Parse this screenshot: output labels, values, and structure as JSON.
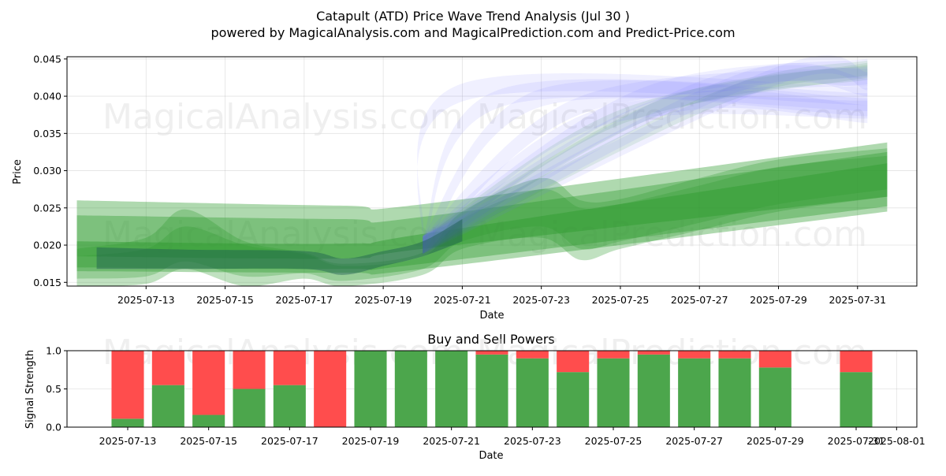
{
  "chart_data": [
    {
      "type": "area",
      "title": "Catapult (ATD) Price Wave Trend Analysis (Jul 30 )",
      "subtitle": "powered by MagicalAnalysis.com and MagicalPrediction.com and Predict-Price.com",
      "xlabel": "Date",
      "ylabel": "Price",
      "xlim": [
        "2025-07-11T00:00",
        "2025-08-01T12:00"
      ],
      "ylim": [
        0.0145,
        0.0453
      ],
      "yticks": [
        "0.015",
        "0.020",
        "0.025",
        "0.030",
        "0.035",
        "0.040",
        "0.045"
      ],
      "ytick_values": [
        0.015,
        0.02,
        0.025,
        0.03,
        0.035,
        0.04,
        0.045
      ],
      "xticks": [
        "2025-07-13",
        "2025-07-15",
        "2025-07-17",
        "2025-07-19",
        "2025-07-21",
        "2025-07-23",
        "2025-07-25",
        "2025-07-27",
        "2025-07-29",
        "2025-07-31"
      ],
      "grid": true,
      "colors": {
        "green": "#2e9a2e",
        "blue": "#6b6bff",
        "dark": "#1a5a50"
      },
      "watermarks": [
        "MagicalAnalysis.com",
        "MagicalPrediction.com",
        "MagicalAnalysis.com",
        "MagicalPrediction.com"
      ],
      "green_bands": [
        {
          "x": [
            "2025-07-11T06:00",
            "2025-07-18T00:00",
            "2025-07-20T00:00",
            "2025-07-31T18:00"
          ],
          "upper": [
            0.026,
            0.0253,
            0.0255,
            0.0338
          ],
          "lower": [
            0.0165,
            0.0163,
            0.0168,
            0.0245
          ],
          "opacity": 0.38
        },
        {
          "x": [
            "2025-07-11T06:00",
            "2025-07-18T00:00",
            "2025-07-20T00:00",
            "2025-07-31T18:00"
          ],
          "upper": [
            0.024,
            0.0235,
            0.0238,
            0.0325
          ],
          "lower": [
            0.017,
            0.0168,
            0.0175,
            0.0252
          ],
          "opacity": 0.38
        },
        {
          "x": [
            "2025-07-11T06:00",
            "2025-07-18T00:00",
            "2025-07-20T00:00",
            "2025-07-31T18:00"
          ],
          "upper": [
            0.0205,
            0.0202,
            0.0215,
            0.031
          ],
          "lower": [
            0.0185,
            0.0182,
            0.0195,
            0.0265
          ],
          "opacity": 0.45
        }
      ],
      "green_waves": [
        {
          "x": [
            "2025-07-11T06:00",
            "2025-07-13T00:00",
            "2025-07-14T00:00",
            "2025-07-15T12:00",
            "2025-07-17T00:00",
            "2025-07-18T00:00",
            "2025-07-20T00:00",
            "2025-07-21T00:00",
            "2025-07-23T00:00",
            "2025-07-24T00:00",
            "2025-07-25T00:00",
            "2025-07-27T00:00",
            "2025-07-29T00:00",
            "2025-07-31T18:00"
          ],
          "upper": [
            0.0195,
            0.021,
            0.0248,
            0.0205,
            0.019,
            0.0175,
            0.019,
            0.0245,
            0.029,
            0.026,
            0.0262,
            0.029,
            0.0315,
            0.033
          ],
          "lower": [
            0.0145,
            0.0148,
            0.0168,
            0.0145,
            0.0155,
            0.0145,
            0.016,
            0.0195,
            0.021,
            0.018,
            0.0195,
            0.022,
            0.0245,
            0.0265
          ],
          "opacity": 0.3
        },
        {
          "x": [
            "2025-07-11T06:00",
            "2025-07-13T00:00",
            "2025-07-14T00:00",
            "2025-07-15T12:00",
            "2025-07-17T00:00",
            "2025-07-18T00:00",
            "2025-07-20T00:00",
            "2025-07-21T00:00",
            "2025-07-23T00:00",
            "2025-07-24T00:00",
            "2025-07-25T00:00",
            "2025-07-27T00:00",
            "2025-07-29T00:00",
            "2025-07-31T18:00"
          ],
          "upper": [
            0.0185,
            0.0195,
            0.0225,
            0.02,
            0.0188,
            0.0172,
            0.0185,
            0.0235,
            0.0275,
            0.025,
            0.0255,
            0.028,
            0.0305,
            0.032
          ],
          "lower": [
            0.0155,
            0.0158,
            0.0178,
            0.0158,
            0.0162,
            0.0152,
            0.0168,
            0.0205,
            0.0225,
            0.0195,
            0.0205,
            0.023,
            0.0255,
            0.0275
          ],
          "opacity": 0.28
        }
      ],
      "blue_forecasts": [
        {
          "from": [
            "2025-07-20T00:00",
            0.02
          ],
          "peak": [
            "2025-07-21T00:00",
            0.0405
          ],
          "to": [
            "2025-07-31T06:00",
            0.04
          ],
          "half_width": 0.0012,
          "opacity": 0.1
        },
        {
          "from": [
            "2025-07-20T00:00",
            0.02
          ],
          "peak": [
            "2025-07-22T00:00",
            0.0398
          ],
          "to": [
            "2025-07-31T06:00",
            0.0392
          ],
          "half_width": 0.0012,
          "opacity": 0.1
        },
        {
          "from": [
            "2025-07-20T00:00",
            0.02
          ],
          "peak": [
            "2025-07-23T00:00",
            0.0398
          ],
          "to": [
            "2025-07-31T06:00",
            0.0385
          ],
          "half_width": 0.0012,
          "opacity": 0.1
        },
        {
          "from": [
            "2025-07-20T00:00",
            0.02
          ],
          "peak": [
            "2025-07-24T00:00",
            0.0388
          ],
          "to": [
            "2025-07-31T06:00",
            0.0428
          ],
          "half_width": 0.0012,
          "opacity": 0.1
        },
        {
          "from": [
            "2025-07-20T00:00",
            0.02
          ],
          "peak": [
            "2025-07-25T12:00",
            0.0398
          ],
          "to": [
            "2025-07-31T06:00",
            0.0438
          ],
          "half_width": 0.0012,
          "opacity": 0.1
        },
        {
          "from": [
            "2025-07-20T00:00",
            0.02
          ],
          "peak": [
            "2025-07-27T00:00",
            0.0408
          ],
          "to": [
            "2025-07-31T06:00",
            0.0425
          ],
          "half_width": 0.0012,
          "opacity": 0.1
        },
        {
          "from": [
            "2025-07-20T00:00",
            0.02
          ],
          "peak": [
            "2025-07-28T00:00",
            0.0418
          ],
          "to": [
            "2025-07-31T06:00",
            0.0412
          ],
          "half_width": 0.0012,
          "opacity": 0.1
        },
        {
          "from": [
            "2025-07-20T00:00",
            0.02
          ],
          "peak": [
            "2025-07-29T00:00",
            0.0428
          ],
          "to": [
            "2025-07-31T06:00",
            0.042
          ],
          "half_width": 0.0012,
          "opacity": 0.1
        },
        {
          "from": [
            "2025-07-20T00:00",
            0.02
          ],
          "peak": [
            "2025-07-24T12:00",
            0.0372
          ],
          "to": [
            "2025-07-31T06:00",
            0.0382
          ],
          "half_width": 0.0012,
          "opacity": 0.1
        },
        {
          "from": [
            "2025-07-20T00:00",
            0.02
          ],
          "peak": [
            "2025-07-26T00:00",
            0.0385
          ],
          "to": [
            "2025-07-31T06:00",
            0.0376
          ],
          "half_width": 0.0012,
          "opacity": 0.1
        }
      ],
      "green_forecasts": [
        {
          "from": [
            "2025-07-20T00:00",
            0.02
          ],
          "peak": [
            "2025-07-25T00:00",
            0.0372
          ],
          "to": [
            "2025-07-31T06:00",
            0.0435
          ],
          "half_width": 0.001,
          "opacity": 0.12
        },
        {
          "from": [
            "2025-07-20T00:00",
            0.02
          ],
          "peak": [
            "2025-07-26T00:00",
            0.0385
          ],
          "to": [
            "2025-07-31T06:00",
            0.0432
          ],
          "half_width": 0.001,
          "opacity": 0.12
        },
        {
          "from": [
            "2025-07-20T00:00",
            0.02
          ],
          "peak": [
            "2025-07-27T12:00",
            0.0398
          ],
          "to": [
            "2025-07-31T06:00",
            0.0438
          ],
          "half_width": 0.001,
          "opacity": 0.12
        }
      ],
      "dark_band": {
        "x": [
          "2025-07-11T18:00",
          "2025-07-14T00:00",
          "2025-07-17T00:00",
          "2025-07-18T00:00",
          "2025-07-19T00:00",
          "2025-07-20T00:00",
          "2025-07-21T00:00"
        ],
        "upper": [
          0.0197,
          0.0194,
          0.0192,
          0.0182,
          0.0192,
          0.0205,
          0.0235
        ],
        "lower": [
          0.0168,
          0.0168,
          0.0168,
          0.016,
          0.0172,
          0.0185,
          0.0205
        ],
        "opacity": 0.45
      }
    },
    {
      "type": "bar",
      "title": "Buy and Sell Powers",
      "xlabel": "Date",
      "ylabel": "Signal Strength",
      "ylim": [
        0,
        1
      ],
      "yticks": [
        "0.0",
        "0.5",
        "1.0"
      ],
      "ytick_values": [
        0,
        0.5,
        1
      ],
      "xlim": [
        "2025-07-11T12:00",
        "2025-08-01T12:00"
      ],
      "xticks": [
        "2025-07-13",
        "2025-07-15",
        "2025-07-17",
        "2025-07-19",
        "2025-07-21",
        "2025-07-23",
        "2025-07-25",
        "2025-07-27",
        "2025-07-29",
        "2025-07-31",
        "2025-08-01"
      ],
      "bar_colors": {
        "buy": "#4ca64c",
        "sell": "#ff4d4d"
      },
      "dates": [
        "2025-07-13",
        "2025-07-14",
        "2025-07-15",
        "2025-07-16",
        "2025-07-17",
        "2025-07-18",
        "2025-07-19",
        "2025-07-20",
        "2025-07-21",
        "2025-07-22",
        "2025-07-23",
        "2025-07-24",
        "2025-07-25",
        "2025-07-26",
        "2025-07-27",
        "2025-07-28",
        "2025-07-29",
        "2025-07-31"
      ],
      "series": [
        {
          "name": "Buy",
          "values": [
            0.11,
            0.55,
            0.16,
            0.5,
            0.55,
            0.0,
            1.0,
            1.0,
            1.0,
            0.95,
            0.9,
            0.72,
            0.9,
            0.95,
            0.9,
            0.9,
            0.78,
            0.72
          ]
        },
        {
          "name": "Sell",
          "values": [
            0.89,
            0.45,
            0.84,
            0.5,
            0.45,
            1.0,
            0.0,
            0.0,
            0.0,
            0.05,
            0.1,
            0.28,
            0.1,
            0.05,
            0.1,
            0.1,
            0.22,
            0.28
          ]
        }
      ],
      "watermarks": [
        "MagicalAnalysis.com",
        "MagicalPrediction.com"
      ]
    }
  ]
}
